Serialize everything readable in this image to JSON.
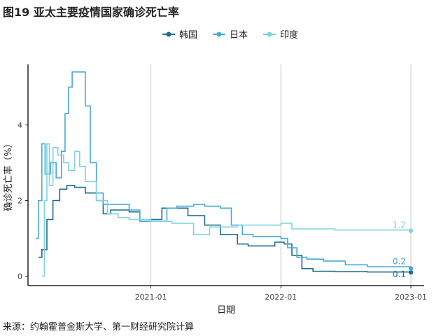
{
  "figure": {
    "title": "图19 亚太主要疫情国家确诊死亡率",
    "source": "来源：约翰霍普金斯大学、第一财经研究院计算"
  },
  "chart_data": {
    "type": "line",
    "xlabel": "日期",
    "ylabel": "确诊死亡率（%）",
    "xlim": [
      "2020-01-22",
      "2023-01-01"
    ],
    "ylim": [
      -0.25,
      5.6
    ],
    "x_ticks": [
      {
        "date": "2021-01-01",
        "label": "2021-01"
      },
      {
        "date": "2022-01-01",
        "label": "2022-01"
      },
      {
        "date": "2023-01-01",
        "label": "2023-01"
      }
    ],
    "y_ticks": [
      0,
      2,
      4
    ],
    "legend_position": "top",
    "series": [
      {
        "name": "韩国",
        "color": "#1f6b8e",
        "end_label": "0.1",
        "points": [
          [
            "2020-02-20",
            0.5
          ],
          [
            "2020-03-01",
            0.7
          ],
          [
            "2020-03-15",
            1.5
          ],
          [
            "2020-04-01",
            2.0
          ],
          [
            "2020-04-20",
            2.3
          ],
          [
            "2020-05-10",
            2.4
          ],
          [
            "2020-06-01",
            2.35
          ],
          [
            "2020-07-01",
            2.2
          ],
          [
            "2020-08-01",
            2.0
          ],
          [
            "2020-08-20",
            1.65
          ],
          [
            "2020-09-10",
            1.75
          ],
          [
            "2020-10-01",
            1.75
          ],
          [
            "2020-11-01",
            1.7
          ],
          [
            "2020-12-01",
            1.45
          ],
          [
            "2021-01-01",
            1.5
          ],
          [
            "2021-02-01",
            1.8
          ],
          [
            "2021-03-01",
            1.8
          ],
          [
            "2021-04-15",
            1.6
          ],
          [
            "2021-06-01",
            1.35
          ],
          [
            "2021-07-15",
            1.1
          ],
          [
            "2021-09-01",
            0.85
          ],
          [
            "2021-10-01",
            0.8
          ],
          [
            "2021-11-15",
            0.8
          ],
          [
            "2021-12-15",
            0.9
          ],
          [
            "2022-01-10",
            0.85
          ],
          [
            "2022-02-01",
            0.55
          ],
          [
            "2022-03-01",
            0.2
          ],
          [
            "2022-04-01",
            0.13
          ],
          [
            "2022-06-01",
            0.12
          ],
          [
            "2022-09-01",
            0.11
          ],
          [
            "2023-01-01",
            0.1
          ]
        ]
      },
      {
        "name": "日本",
        "color": "#45a9d8",
        "end_label": "0.2",
        "points": [
          [
            "2020-02-13",
            1.0
          ],
          [
            "2020-02-20",
            2.0
          ],
          [
            "2020-03-01",
            3.5
          ],
          [
            "2020-03-10",
            2.7
          ],
          [
            "2020-03-25",
            3.0
          ],
          [
            "2020-04-10",
            2.6
          ],
          [
            "2020-04-25",
            3.3
          ],
          [
            "2020-05-05",
            4.3
          ],
          [
            "2020-05-15",
            5.0
          ],
          [
            "2020-05-25",
            5.4
          ],
          [
            "2020-06-15",
            5.4
          ],
          [
            "2020-07-01",
            4.5
          ],
          [
            "2020-07-15",
            3.0
          ],
          [
            "2020-08-01",
            2.2
          ],
          [
            "2020-08-20",
            1.9
          ],
          [
            "2020-10-01",
            1.9
          ],
          [
            "2020-11-01",
            1.75
          ],
          [
            "2020-12-01",
            1.45
          ],
          [
            "2021-01-01",
            1.45
          ],
          [
            "2021-02-15",
            1.8
          ],
          [
            "2021-03-15",
            1.85
          ],
          [
            "2021-05-01",
            1.9
          ],
          [
            "2021-06-01",
            1.85
          ],
          [
            "2021-07-15",
            1.8
          ],
          [
            "2021-08-15",
            1.35
          ],
          [
            "2021-09-15",
            1.1
          ],
          [
            "2021-10-15",
            1.05
          ],
          [
            "2021-12-01",
            1.05
          ],
          [
            "2022-01-01",
            1.0
          ],
          [
            "2022-01-20",
            0.75
          ],
          [
            "2022-02-15",
            0.5
          ],
          [
            "2022-03-15",
            0.45
          ],
          [
            "2022-05-01",
            0.4
          ],
          [
            "2022-07-01",
            0.3
          ],
          [
            "2022-09-01",
            0.25
          ],
          [
            "2023-01-01",
            0.2
          ]
        ]
      },
      {
        "name": "印度",
        "color": "#7fd3df",
        "end_label": "1.2",
        "points": [
          [
            "2020-03-01",
            0.0
          ],
          [
            "2020-03-08",
            2.0
          ],
          [
            "2020-03-15",
            3.5
          ],
          [
            "2020-03-22",
            2.4
          ],
          [
            "2020-04-01",
            3.4
          ],
          [
            "2020-04-15",
            3.2
          ],
          [
            "2020-05-01",
            3.0
          ],
          [
            "2020-05-15",
            2.8
          ],
          [
            "2020-06-01",
            3.3
          ],
          [
            "2020-06-15",
            2.9
          ],
          [
            "2020-07-01",
            2.5
          ],
          [
            "2020-08-01",
            2.0
          ],
          [
            "2020-09-01",
            1.65
          ],
          [
            "2020-10-01",
            1.55
          ],
          [
            "2020-11-01",
            1.5
          ],
          [
            "2021-01-01",
            1.45
          ],
          [
            "2021-03-01",
            1.4
          ],
          [
            "2021-05-01",
            1.1
          ],
          [
            "2021-06-15",
            1.3
          ],
          [
            "2021-09-01",
            1.35
          ],
          [
            "2022-01-01",
            1.4
          ],
          [
            "2022-02-01",
            1.25
          ],
          [
            "2022-06-01",
            1.22
          ],
          [
            "2023-01-01",
            1.2
          ]
        ]
      }
    ]
  }
}
